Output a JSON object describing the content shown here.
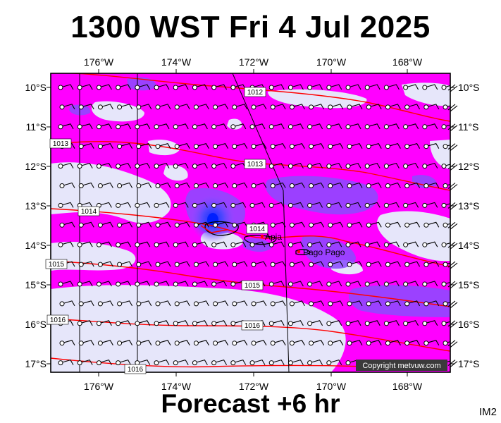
{
  "header": {
    "title": "1300 WST Fri 4 Jul 2025"
  },
  "footer": {
    "subtitle": "Forecast +6 hr",
    "image_id": "IM2"
  },
  "map": {
    "lon_labels": [
      "176°W",
      "174°W",
      "172°W",
      "170°W",
      "168°W"
    ],
    "lat_labels": [
      "10°S",
      "11°S",
      "12°S",
      "13°S",
      "14°S",
      "15°S",
      "16°S",
      "17°S"
    ],
    "places": [
      {
        "name": "Apia"
      },
      {
        "name": "Pago Pago"
      }
    ],
    "isobar_labels": [
      "1012",
      "1013",
      "1013",
      "1014",
      "1014",
      "1015",
      "1015",
      "1016",
      "1016",
      "1016"
    ],
    "copyright": "Copyright metvuw.com",
    "colors": {
      "rain_heavy": "#ff00ff",
      "rain_light": "#e6e6fa",
      "rain_core": "#4a3cff",
      "isobar": "#ff0000",
      "frame": "#000000"
    }
  }
}
